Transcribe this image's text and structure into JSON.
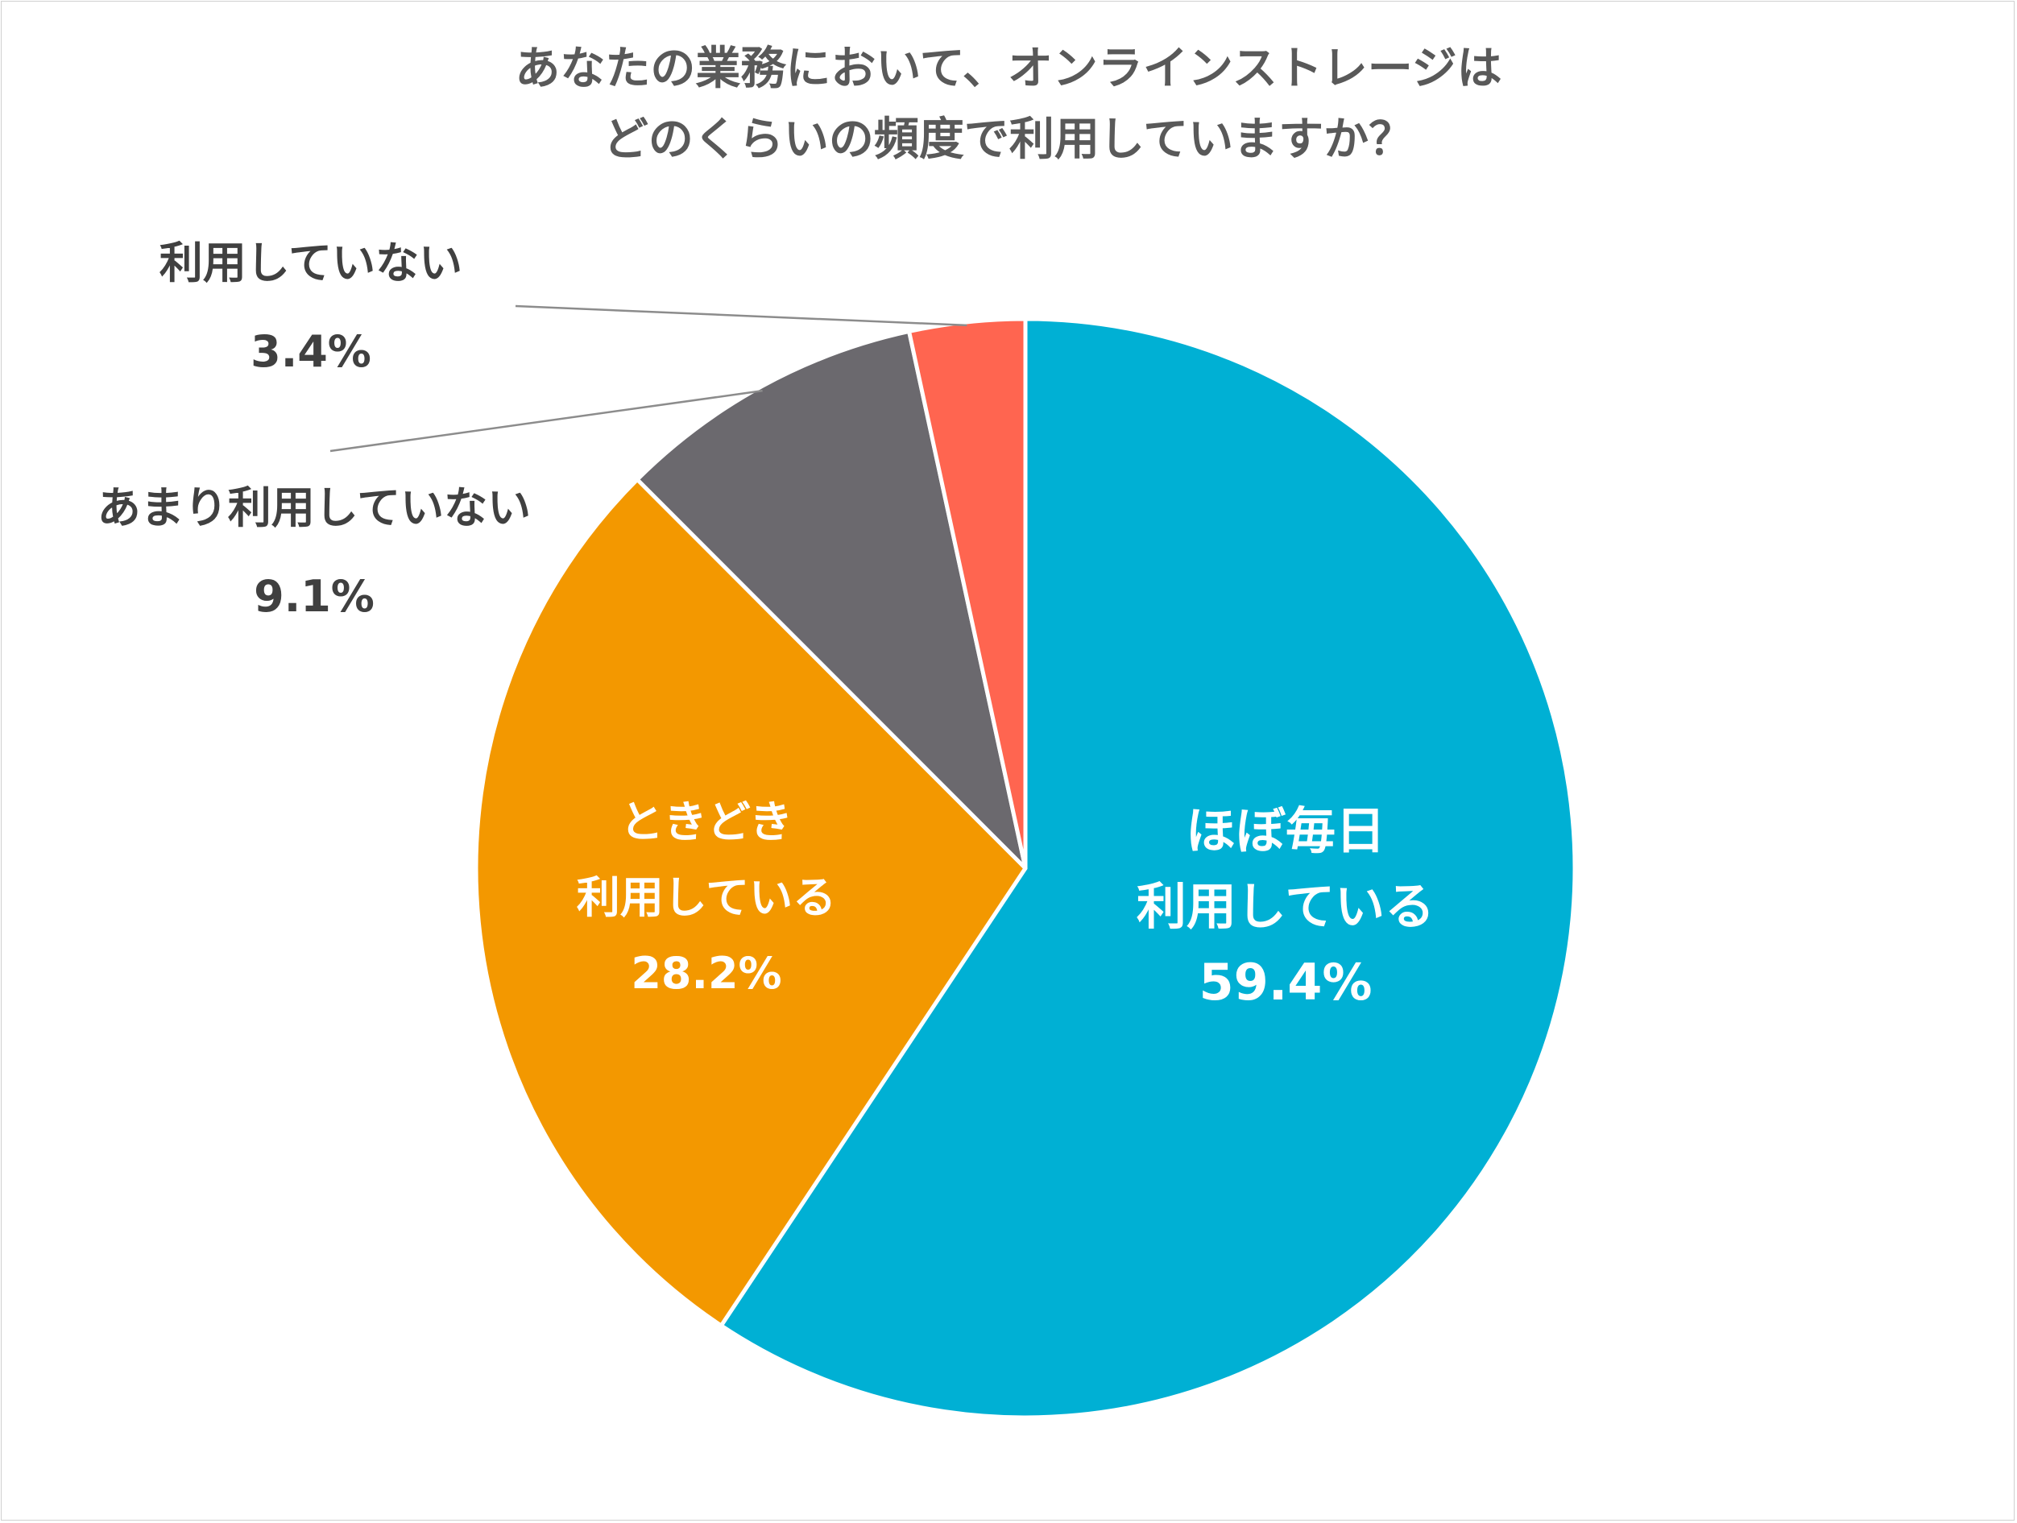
{
  "chart_data": {
    "type": "pie",
    "title_lines": [
      "あなたの業務において、オンラインストレージは",
      "どのくらいの頻度で利用していますか？"
    ],
    "slices": [
      {
        "label_lines": [
          "ほぼ毎日",
          "利用している"
        ],
        "value": 59.4,
        "value_label": "59.4%",
        "color": "#00b0d4"
      },
      {
        "label_lines": [
          "ときどき",
          "利用している"
        ],
        "value": 28.2,
        "value_label": "28.2%",
        "color": "#f39800"
      },
      {
        "label_lines": [
          "あまり利用していない"
        ],
        "value": 9.1,
        "value_label": "9.1%",
        "color": "#6b696e"
      },
      {
        "label_lines": [
          "利用していない"
        ],
        "value": 3.4,
        "value_label": "3.4%",
        "color": "#ff6550"
      }
    ],
    "start_angle": "12 o'clock",
    "direction": "clockwise",
    "legend": "none",
    "label_placement": [
      "inside",
      "inside",
      "outside-left",
      "outside-left"
    ]
  }
}
